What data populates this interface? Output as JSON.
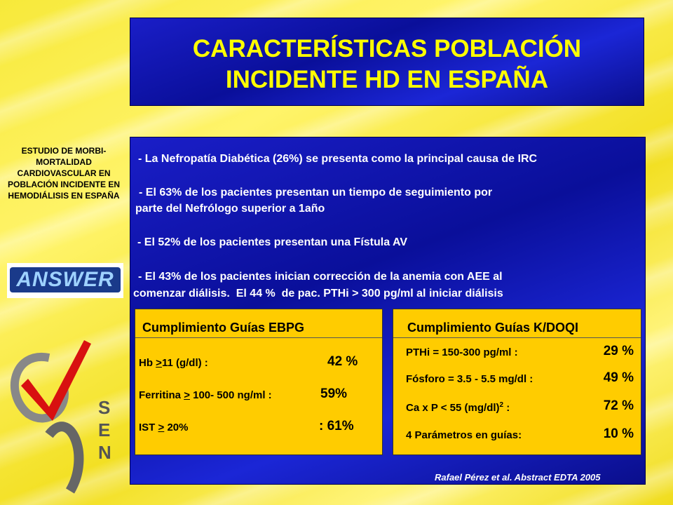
{
  "sidebar": {
    "study": "ESTUDIO DE MORBI-MORTALIDAD CARDIOVASCULAR EN POBLACIÓN INCIDENTE EN HEMODIÁLISIS EN ESPAÑA",
    "answer_logo": "ANSWER",
    "sen_letters": [
      "S",
      "E",
      "N"
    ]
  },
  "header": {
    "title_lines": [
      "CARACTERÍSTICAS POBLACIÓN",
      "INCIDENTE HD EN ESPAÑA"
    ]
  },
  "bullets": [
    [
      "- La Nefropatía Diabética (26%) se presenta como la principal causa de IRC"
    ],
    [
      "- El 63% de los pacientes presentan un tiempo de seguimiento por",
      "parte del Nefrólogo superior a 1año"
    ],
    [
      "- El 52% de los pacientes presentan una Fístula AV"
    ],
    [
      "- El 43% de los pacientes inician corrección de la anemia con AEE al",
      "comenzar diálisis.  El 44 %  de pac. PTHi > 300 pg/ml al iniciar diálisis"
    ]
  ],
  "ebpg": {
    "title": "Cumplimiento Guías EBPG",
    "rows": [
      {
        "pre": "Hb ",
        "sym": ">",
        "post": "11 (g/dl) :",
        "value": "42 %"
      },
      {
        "pre": "Ferritina ",
        "sym": ">",
        "post": " 100- 500 ng/ml :",
        "value": "59%"
      },
      {
        "pre": "IST ",
        "sym": ">",
        "post": " 20%",
        "value": ": 61%"
      }
    ]
  },
  "kdoqi": {
    "title": "Cumplimiento Guías K/DOQI",
    "rows": [
      {
        "label": "PTHi = 150-300 pg/ml :",
        "value": "29 %"
      },
      {
        "label": "Fósforo = 3.5 - 5.5 mg/dl :",
        "value": "49 %"
      },
      {
        "label": "Ca x P < 55 (mg/dl)",
        "sup": "2",
        "tail": " :",
        "value": "72 %"
      },
      {
        "label": "4 Parámetros en guías:",
        "value": "10 %"
      }
    ]
  },
  "citation": "Rafael Pérez et al.  Abstract EDTA 2005"
}
